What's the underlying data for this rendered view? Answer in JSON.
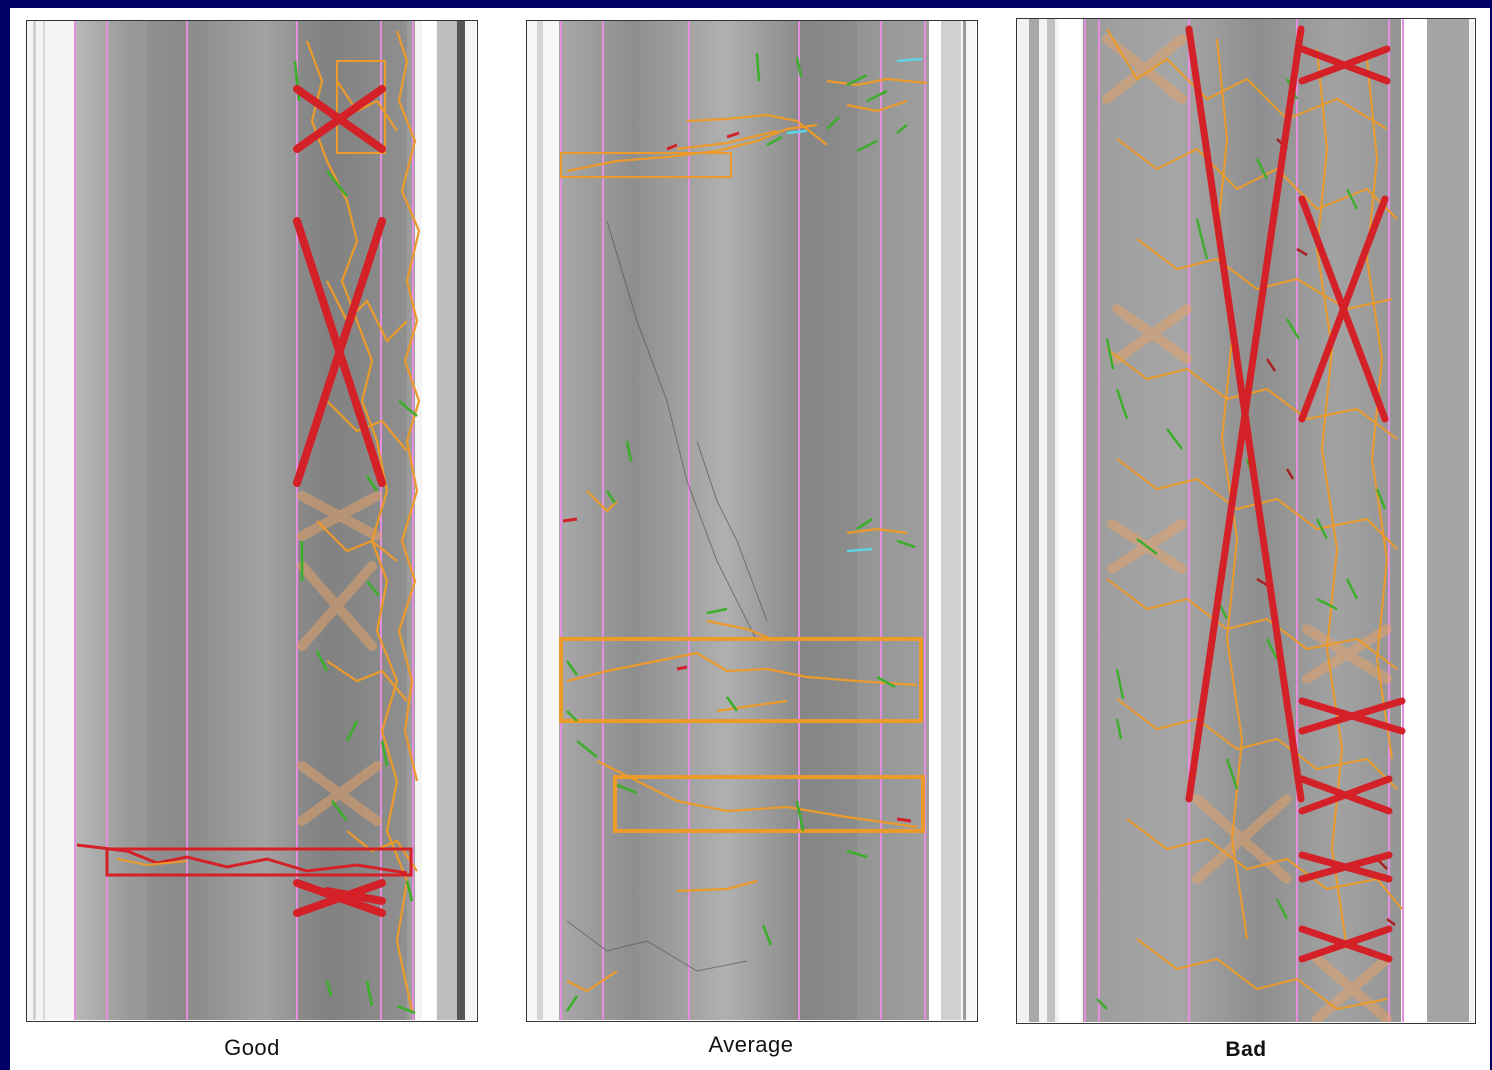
{
  "captions": {
    "good": "Good",
    "average": "Average",
    "bad": "Bad"
  },
  "colors": {
    "frame_background": "#000066",
    "lane_marker": "#e58ee0",
    "major_crack": "#d42027",
    "orange_crack": "#ec9a2a",
    "green_crack": "#3dae2b",
    "cyan_crack": "#5fd3e6"
  }
}
